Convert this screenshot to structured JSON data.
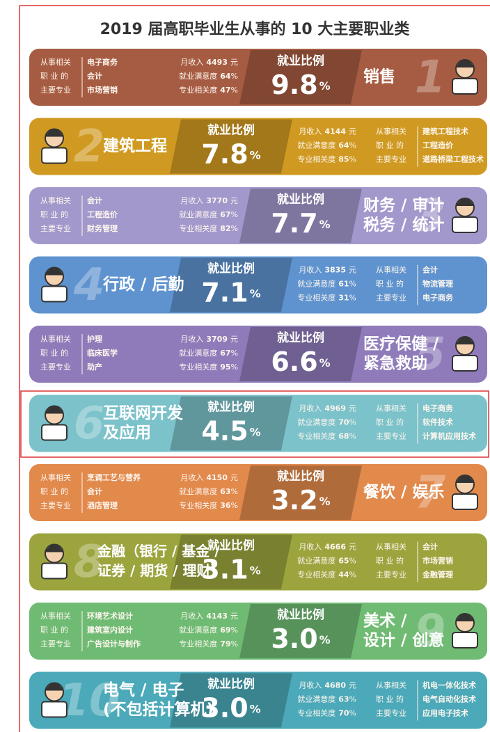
{
  "title": "2019 届高职毕业生从事的 10 大主要职业类",
  "labels": {
    "ratio": "就业比例",
    "income": "月收入",
    "yuan": "元",
    "satisfaction": "就业满意度",
    "relevance": "专业相关度",
    "percent": "%",
    "majors_heading": [
      "从事相关",
      "职 业 的",
      "主要专业"
    ]
  },
  "rows": [
    {
      "rank": "1",
      "name": [
        "销售"
      ],
      "share": "9.8",
      "income": "4493",
      "satisfaction": "64",
      "relevance": "47",
      "majors": [
        "电子商务",
        "会计",
        "市场营销"
      ],
      "color": "#a65c42"
    },
    {
      "rank": "2",
      "name": [
        "建筑工程"
      ],
      "share": "7.8",
      "income": "4144",
      "satisfaction": "64",
      "relevance": "85",
      "majors": [
        "建筑工程技术",
        "工程造价",
        "道路桥梁工程技术"
      ],
      "color": "#d09a22"
    },
    {
      "rank": "3",
      "name": [
        "财务 / 审计",
        "税务 / 统计"
      ],
      "share": "7.7",
      "income": "3770",
      "satisfaction": "67",
      "relevance": "82",
      "majors": [
        "会计",
        "工程造价",
        "财务管理"
      ],
      "color": "#a398cc"
    },
    {
      "rank": "4",
      "name": [
        "行政 / 后勤"
      ],
      "share": "7.1",
      "income": "3835",
      "satisfaction": "61",
      "relevance": "31",
      "majors": [
        "会计",
        "物流管理",
        "电子商务"
      ],
      "color": "#5e93cf"
    },
    {
      "rank": "5",
      "name": [
        "医疗保健 /",
        "紧急救助"
      ],
      "share": "6.6",
      "income": "3709",
      "satisfaction": "67",
      "relevance": "95",
      "majors": [
        "护理",
        "临床医学",
        "助产"
      ],
      "color": "#8f7bba"
    },
    {
      "rank": "6",
      "name": [
        "互联网开发",
        "及应用"
      ],
      "share": "4.5",
      "income": "4969",
      "satisfaction": "70",
      "relevance": "68",
      "majors": [
        "电子商务",
        "软件技术",
        "计算机应用技术"
      ],
      "color": "#7cc2ca"
    },
    {
      "rank": "7",
      "name": [
        "餐饮 / 娱乐"
      ],
      "share": "3.2",
      "income": "4150",
      "satisfaction": "63",
      "relevance": "36",
      "majors": [
        "烹调工艺与营养",
        "会计",
        "酒店管理"
      ],
      "color": "#e2894c"
    },
    {
      "rank": "8",
      "name": [
        "金融（银行 / 基金 /",
        "证券 / 期货 / 理财）"
      ],
      "share": "3.1",
      "income": "4666",
      "satisfaction": "65",
      "relevance": "44",
      "majors": [
        "会计",
        "市场营销",
        "金融管理"
      ],
      "color": "#9ca43e"
    },
    {
      "rank": "9",
      "name": [
        "美术 /",
        "设计 / 创意"
      ],
      "share": "3.0",
      "income": "4143",
      "satisfaction": "69",
      "relevance": "79",
      "majors": [
        "环境艺术设计",
        "建筑室内设计",
        "广告设计与制作"
      ],
      "color": "#70bb74"
    },
    {
      "rank": "10",
      "name": [
        "电气 / 电子",
        "(不包括计算机)"
      ],
      "share": "3.0",
      "income": "4680",
      "satisfaction": "63",
      "relevance": "70",
      "majors": [
        "机电一体化技术",
        "电气自动化技术",
        "应用电子技术"
      ],
      "color": "#4ba9b9"
    }
  ]
}
